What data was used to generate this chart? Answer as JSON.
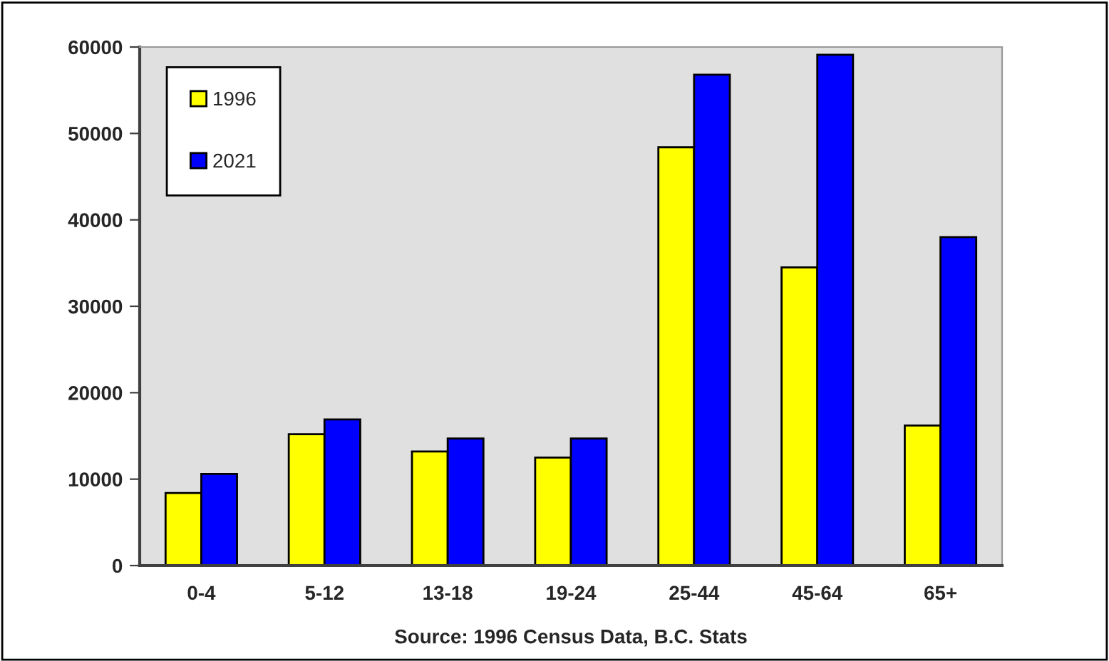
{
  "chart_data": {
    "type": "bar",
    "categories": [
      "0-4",
      "5-12",
      "13-18",
      "19-24",
      "25-44",
      "45-64",
      "65+"
    ],
    "series": [
      {
        "name": "1996",
        "color": "#ffff00",
        "values": [
          8400,
          15200,
          13200,
          12500,
          48400,
          34500,
          16200
        ]
      },
      {
        "name": "2021",
        "color": "#0000ff",
        "values": [
          10600,
          16900,
          14700,
          14700,
          56800,
          59100,
          38000
        ]
      }
    ],
    "ylim": [
      0,
      60000
    ],
    "yticks": [
      0,
      10000,
      20000,
      30000,
      40000,
      50000,
      60000
    ],
    "grid": false,
    "legend": "top left",
    "annotations": [
      "Source: 1996 Census Data, B.C. Stats"
    ]
  }
}
